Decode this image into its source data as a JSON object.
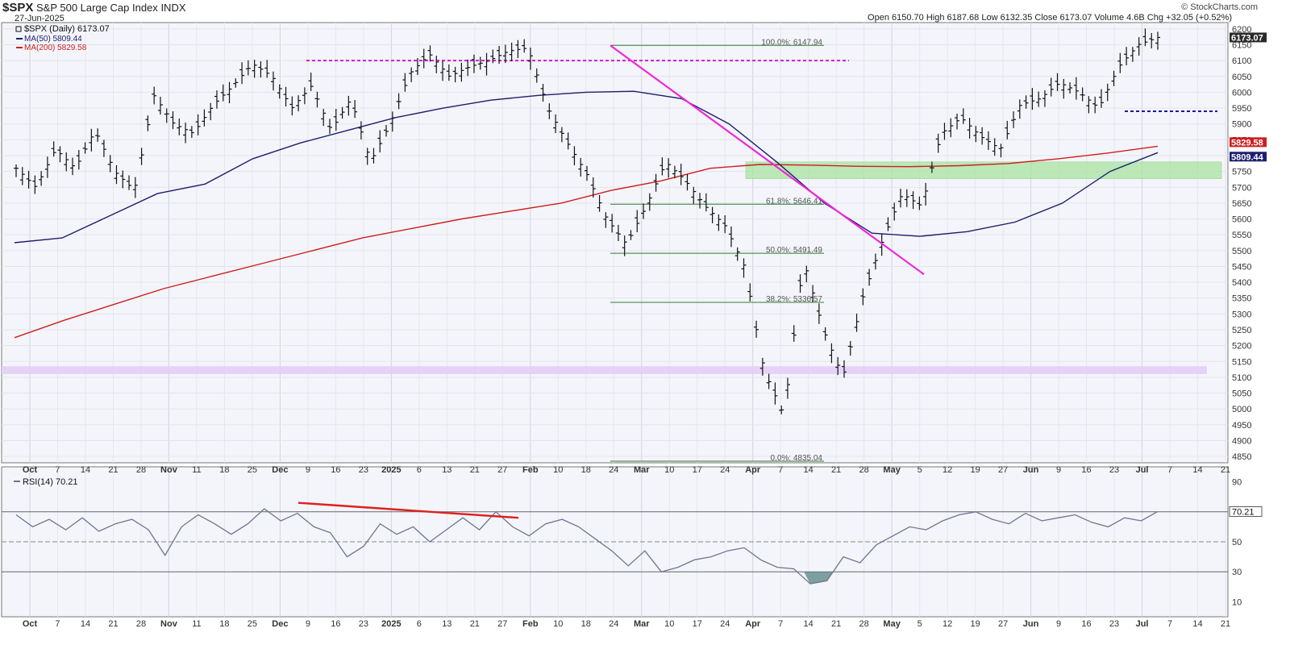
{
  "header": {
    "symbol": "$SPX",
    "name": "S&P 500 Large Cap Index",
    "exchange": "INDX",
    "date": "27-Jun-2025",
    "ohlc_text": "Open 6150.70   High 6187.68   Low 6132.35   Close 6173.07   Volume 4.6B   Chg +32.05 (+0.52%)",
    "brand": "© StockCharts.com"
  },
  "legend": {
    "price": "$SPX (Daily) 6173.07",
    "ma50": "MA(50) 5809.44",
    "ma200": "MA(200) 5829.58",
    "rsi": "RSI(14) 70.21"
  },
  "colors": {
    "price": "#111111",
    "ma50": "#1c1f6e",
    "ma200": "#cc1f1f",
    "trendline": "#ee28d8",
    "resistance": "#cc1fcc",
    "fib": "#2e7d32",
    "green_zone": "#a8e4a0",
    "purple_zone": "#e2cdf6",
    "support": "#1a1a9a",
    "rsi_line": "#6d7691",
    "rsi_divergence": "#e02020",
    "last_label": "#2a2a2a"
  },
  "chart_data": [
    {
      "type": "ohlc",
      "title": "$SPX (Daily)",
      "y_axis_ticks": [
        6200,
        6150,
        6100,
        6050,
        6000,
        5950,
        5900,
        5850,
        5800,
        5750,
        5700,
        5650,
        5600,
        5550,
        5500,
        5450,
        5400,
        5350,
        5300,
        5250,
        5200,
        5150,
        5100,
        5050,
        5000,
        4950,
        4900,
        4850
      ],
      "y_axis_labels": [
        "6200",
        "6150",
        "6100",
        "6050",
        "6000",
        "5950",
        "5900",
        "5850",
        "5800",
        "5750",
        "5700",
        "5650",
        "5600",
        "5550",
        "5500",
        "5450",
        "5400",
        "5350",
        "5300",
        "5250",
        "5200",
        "5150",
        "5100",
        "5050",
        "5000",
        "4950",
        "4900",
        "4850"
      ],
      "ylim": [
        4830,
        6220
      ],
      "x_axis_labels": [
        "Oct",
        "7",
        "14",
        "21",
        "28",
        "Nov",
        "11",
        "18",
        "25",
        "Dec",
        "9",
        "16",
        "23",
        "2025",
        "6",
        "13",
        "21",
        "27",
        "Feb",
        "10",
        "18",
        "24",
        "Mar",
        "10",
        "17",
        "24",
        "Apr",
        "7",
        "14",
        "21",
        "28",
        "May",
        "5",
        "12",
        "19",
        "27",
        "Jun",
        "9",
        "16",
        "23",
        "Jul",
        "7",
        "14",
        "21"
      ],
      "x_axis_bold": [
        "Oct",
        "Nov",
        "Dec",
        "2025",
        "Feb",
        "Mar",
        "Apr",
        "May",
        "Jun",
        "Jul"
      ],
      "series": [
        {
          "name": "MA(50)",
          "values": [
            5525,
            5540,
            5610,
            5680,
            5710,
            5790,
            5840,
            5880,
            5920,
            5950,
            5975,
            5990,
            6000,
            6003,
            5980,
            5900,
            5780,
            5650,
            5555,
            5545,
            5560,
            5590,
            5650,
            5750,
            5809.44
          ]
        },
        {
          "name": "MA(200)",
          "values": [
            5225,
            5280,
            5330,
            5380,
            5420,
            5460,
            5500,
            5540,
            5570,
            5600,
            5625,
            5650,
            5690,
            5720,
            5760,
            5772,
            5770,
            5766,
            5765,
            5768,
            5775,
            5790,
            5808,
            5829.58
          ]
        }
      ],
      "price_path": [
        5760,
        5700,
        5820,
        5760,
        5880,
        5750,
        5690,
        5990,
        5900,
        5870,
        5960,
        6020,
        6090,
        6050,
        5950,
        6020,
        5880,
        5980,
        5780,
        5900,
        6060,
        6120,
        6050,
        6080,
        6100,
        6130,
        6140,
        5950,
        5840,
        5740,
        5600,
        5520,
        5640,
        5780,
        5720,
        5640,
        5580,
        5450,
        5120,
        4980,
        5470,
        5250,
        5100,
        5350,
        5530,
        5680,
        5640,
        5870,
        5920,
        5860,
        5820,
        5960,
        5980,
        6030,
        6000,
        5950,
        6080,
        6150,
        6173.07
      ],
      "last_price": 6173.07,
      "annotations": {
        "fib_levels": [
          {
            "label": "100.0%: 6147.94",
            "value": 6147.94
          },
          {
            "label": "61.8%: 5646.41",
            "value": 5646.41
          },
          {
            "label": "50.0%: 5491.49",
            "value": 5491.49
          },
          {
            "label": "38.2%: 5336.57",
            "value": 5336.57
          },
          {
            "label": "0.0%: 4835.04",
            "value": 4835.04
          }
        ],
        "resistance_level": 6100,
        "support_level": 5940,
        "green_zone": [
          5727,
          5780
        ],
        "purple_zone": [
          5110,
          5135
        ]
      }
    },
    {
      "type": "line",
      "title": "RSI(14)",
      "y_axis_ticks": [
        90,
        70,
        50,
        30,
        10
      ],
      "y_axis_labels": [
        "90",
        "70",
        "50",
        "30",
        "10"
      ],
      "ylim": [
        0,
        100
      ],
      "reference_lines": [
        70,
        50,
        30
      ],
      "values": [
        68,
        60,
        65,
        58,
        66,
        57,
        62,
        65,
        58,
        41,
        60,
        68,
        62,
        55,
        62,
        72,
        64,
        69,
        60,
        56,
        40,
        47,
        62,
        55,
        60,
        50,
        58,
        66,
        58,
        70,
        60,
        54,
        62,
        65,
        60,
        52,
        44,
        34,
        44,
        30,
        33,
        38,
        40,
        44,
        46,
        38,
        33,
        32,
        22,
        24,
        40,
        36,
        48,
        54,
        60,
        58,
        64,
        68,
        70,
        65,
        62,
        69,
        64,
        66,
        68,
        63,
        60,
        66,
        64,
        70.21
      ],
      "last_value": 70.21
    }
  ]
}
